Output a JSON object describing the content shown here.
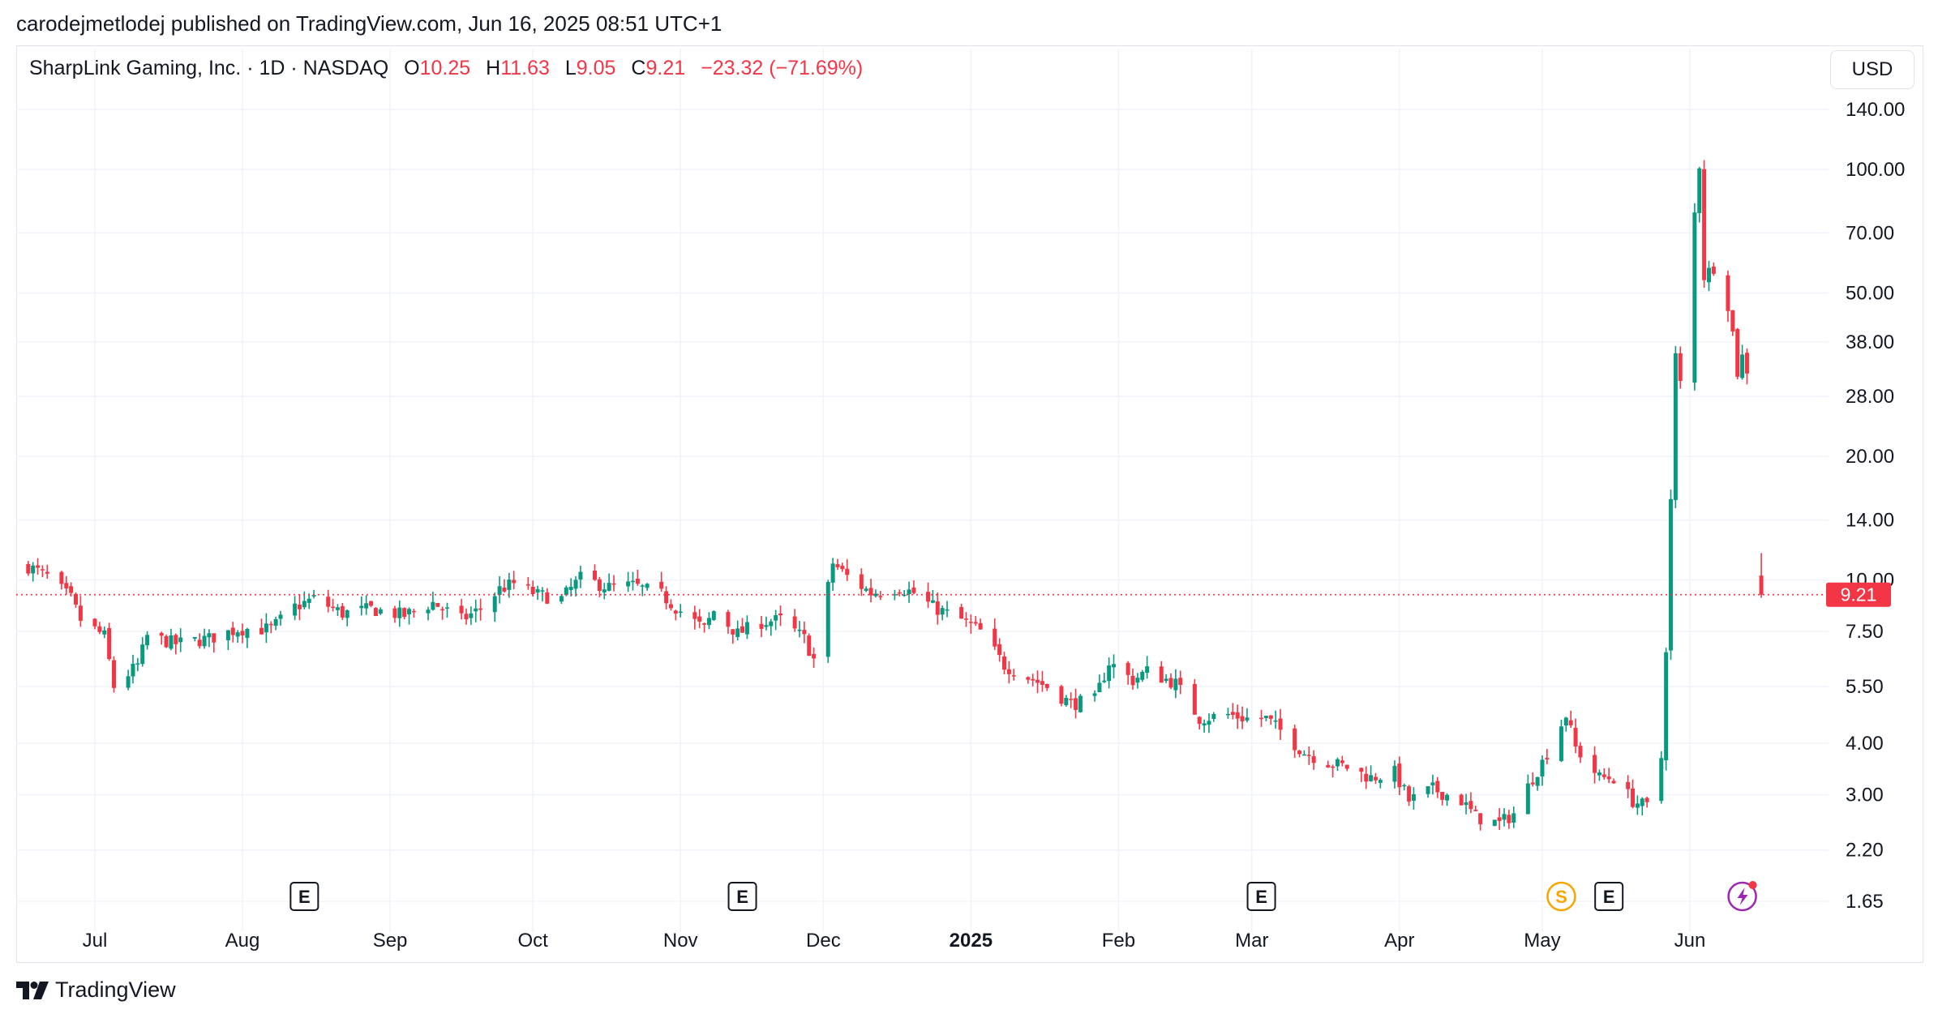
{
  "header": {
    "published_line": "carodejmetlodej published on TradingView.com, Jun 16, 2025 08:51 UTC+1"
  },
  "legend": {
    "symbol": "SharpLink Gaming, Inc. · 1D · NASDAQ",
    "o_label": "O",
    "o_value": "10.25",
    "h_label": "H",
    "h_value": "11.63",
    "l_label": "L",
    "l_value": "9.05",
    "c_label": "C",
    "c_value": "9.21",
    "change": "−23.32 (−71.69%)"
  },
  "currency_button": "USD",
  "price_tag": "9.21",
  "footer": {
    "brand": "TradingView"
  },
  "colors": {
    "up": "#089981",
    "down": "#f23645",
    "grid": "#f0f3fa",
    "text": "#131722"
  },
  "event_markers": [
    {
      "type": "earnings",
      "label": "E",
      "date": "2024-08-14"
    },
    {
      "type": "earnings",
      "label": "E",
      "date": "2024-11-14"
    },
    {
      "type": "earnings",
      "label": "E",
      "date": "2025-03-03"
    },
    {
      "type": "split",
      "label": "S",
      "date": "2025-05-05"
    },
    {
      "type": "earnings",
      "label": "E",
      "date": "2025-05-15"
    },
    {
      "type": "flash",
      "label": "",
      "date": "2025-06-12",
      "icon": "lightning-icon"
    }
  ],
  "chart_data": {
    "type": "candlestick",
    "scale": "log",
    "title": "SharpLink Gaming, Inc. · 1D · NASDAQ",
    "xlabel": "",
    "ylabel": "",
    "ylim": [
      1.55,
      165
    ],
    "y_ticks": [
      "140.00",
      "100.00",
      "70.00",
      "50.00",
      "38.00",
      "28.00",
      "20.00",
      "14.00",
      "10.00",
      "7.50",
      "5.50",
      "4.00",
      "3.00",
      "2.20",
      "1.65"
    ],
    "x_ticks": [
      {
        "label": "Jul",
        "date": "2024-07-01",
        "bold": false
      },
      {
        "label": "Aug",
        "date": "2024-08-01",
        "bold": false
      },
      {
        "label": "Sep",
        "date": "2024-09-01",
        "bold": false
      },
      {
        "label": "Oct",
        "date": "2024-10-01",
        "bold": false
      },
      {
        "label": "Nov",
        "date": "2024-11-01",
        "bold": false
      },
      {
        "label": "Dec",
        "date": "2024-12-01",
        "bold": false
      },
      {
        "label": "2025",
        "date": "2025-01-01",
        "bold": true
      },
      {
        "label": "Feb",
        "date": "2025-02-01",
        "bold": false
      },
      {
        "label": "Mar",
        "date": "2025-03-01",
        "bold": false
      },
      {
        "label": "Apr",
        "date": "2025-04-01",
        "bold": false
      },
      {
        "label": "May",
        "date": "2025-05-01",
        "bold": false
      },
      {
        "label": "Jun",
        "date": "2025-06-01",
        "bold": false
      }
    ],
    "last_close": 9.21,
    "anchors": [
      [
        "2024-06-17",
        10.8
      ],
      [
        "2024-06-21",
        10.2
      ],
      [
        "2024-06-26",
        9.0
      ],
      [
        "2024-06-28",
        8.0
      ],
      [
        "2024-07-03",
        7.3
      ],
      [
        "2024-07-05",
        5.5
      ],
      [
        "2024-07-10",
        6.2
      ],
      [
        "2024-07-12",
        7.3
      ],
      [
        "2024-07-18",
        7.0
      ],
      [
        "2024-07-25",
        7.2
      ],
      [
        "2024-07-31",
        7.6
      ],
      [
        "2024-08-07",
        7.6
      ],
      [
        "2024-08-12",
        8.6
      ],
      [
        "2024-08-16",
        9.0
      ],
      [
        "2024-08-22",
        8.3
      ],
      [
        "2024-08-28",
        8.5
      ],
      [
        "2024-09-04",
        8.2
      ],
      [
        "2024-09-10",
        8.8
      ],
      [
        "2024-09-16",
        8.0
      ],
      [
        "2024-09-20",
        8.5
      ],
      [
        "2024-09-24",
        9.5
      ],
      [
        "2024-09-27",
        9.8
      ],
      [
        "2024-10-02",
        9.2
      ],
      [
        "2024-10-07",
        9.0
      ],
      [
        "2024-10-11",
        10.1
      ],
      [
        "2024-10-17",
        9.6
      ],
      [
        "2024-10-22",
        9.7
      ],
      [
        "2024-10-28",
        9.2
      ],
      [
        "2024-11-01",
        8.4
      ],
      [
        "2024-11-06",
        7.6
      ],
      [
        "2024-11-08",
        8.4
      ],
      [
        "2024-11-13",
        7.4
      ],
      [
        "2024-11-18",
        7.9
      ],
      [
        "2024-11-22",
        8.0
      ],
      [
        "2024-11-27",
        7.2
      ],
      [
        "2024-11-29",
        6.4
      ],
      [
        "2024-12-03",
        11.0
      ],
      [
        "2024-12-06",
        10.2
      ],
      [
        "2024-12-11",
        9.3
      ],
      [
        "2024-12-17",
        9.6
      ],
      [
        "2024-12-20",
        9.3
      ],
      [
        "2024-12-24",
        8.6
      ],
      [
        "2024-12-30",
        8.0
      ],
      [
        "2025-01-03",
        7.5
      ],
      [
        "2025-01-08",
        6.2
      ],
      [
        "2025-01-13",
        5.8
      ],
      [
        "2025-01-17",
        5.5
      ],
      [
        "2025-01-22",
        5.0
      ],
      [
        "2025-01-27",
        5.1
      ],
      [
        "2025-01-30",
        6.3
      ],
      [
        "2025-02-04",
        5.7
      ],
      [
        "2025-02-07",
        6.0
      ],
      [
        "2025-02-13",
        5.6
      ],
      [
        "2025-02-18",
        4.6
      ],
      [
        "2025-02-24",
        4.7
      ],
      [
        "2025-02-28",
        4.6
      ],
      [
        "2025-03-04",
        4.6
      ],
      [
        "2025-03-07",
        4.3
      ],
      [
        "2025-03-12",
        3.8
      ],
      [
        "2025-03-17",
        3.6
      ],
      [
        "2025-03-21",
        3.5
      ],
      [
        "2025-03-26",
        3.3
      ],
      [
        "2025-03-31",
        3.4
      ],
      [
        "2025-04-03",
        2.9
      ],
      [
        "2025-04-08",
        3.1
      ],
      [
        "2025-04-14",
        2.9
      ],
      [
        "2025-04-17",
        2.65
      ],
      [
        "2025-04-22",
        2.55
      ],
      [
        "2025-04-25",
        2.7
      ],
      [
        "2025-04-29",
        3.3
      ],
      [
        "2025-05-01",
        3.6
      ],
      [
        "2025-05-06",
        4.7
      ],
      [
        "2025-05-08",
        3.9
      ],
      [
        "2025-05-13",
        3.3
      ],
      [
        "2025-05-16",
        3.3
      ],
      [
        "2025-05-20",
        2.9
      ],
      [
        "2025-05-23",
        2.8
      ],
      [
        "2025-05-26",
        3.7
      ],
      [
        "2025-05-27",
        6.9
      ],
      [
        "2025-05-29",
        35.0
      ],
      [
        "2025-05-30",
        30.0
      ],
      [
        "2025-06-02",
        78.0
      ],
      [
        "2025-06-03",
        103.0
      ],
      [
        "2025-06-04",
        55.0
      ],
      [
        "2025-06-06",
        58.0
      ],
      [
        "2025-06-09",
        47.0
      ],
      [
        "2025-06-10",
        40.0
      ],
      [
        "2025-06-11",
        32.0
      ],
      [
        "2025-06-12",
        35.0
      ],
      [
        "2025-06-13",
        32.54
      ],
      [
        "2025-06-16",
        9.21
      ]
    ],
    "final_candle": {
      "date": "2025-06-16",
      "open": 10.25,
      "high": 11.63,
      "low": 9.05,
      "close": 9.21
    }
  }
}
